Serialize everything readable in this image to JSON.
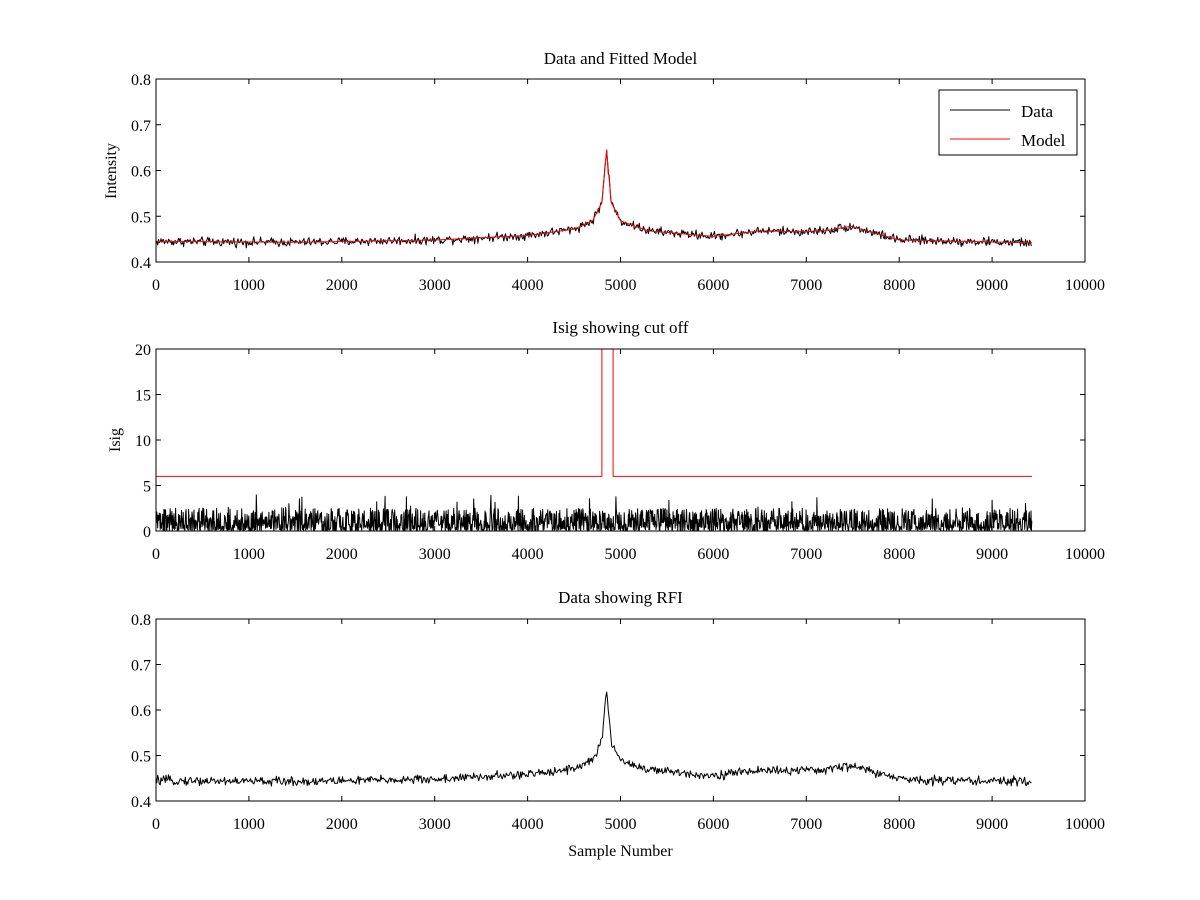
{
  "chart_data": [
    {
      "type": "line",
      "title": "Data and Fitted Model",
      "xlabel": "",
      "ylabel": "Intensity",
      "xlim": [
        0,
        10000
      ],
      "ylim": [
        0.4,
        0.8
      ],
      "xticks": [
        "0",
        "1000",
        "2000",
        "3000",
        "4000",
        "5000",
        "6000",
        "7000",
        "8000",
        "9000",
        "10000"
      ],
      "yticks": [
        "0.4",
        "0.5",
        "0.6",
        "0.7",
        "0.8"
      ],
      "legend": {
        "position": "top-right",
        "entries": [
          "Data",
          "Model"
        ]
      },
      "series": [
        {
          "name": "Data",
          "color": "#000000",
          "kind": "noisy-spectrum",
          "noise": 0.006,
          "points": [
            [
              0,
              0.445
            ],
            [
              1500,
              0.443
            ],
            [
              3000,
              0.448
            ],
            [
              4000,
              0.458
            ],
            [
              4500,
              0.472
            ],
            [
              4700,
              0.49
            ],
            [
              4800,
              0.53
            ],
            [
              4850,
              0.645
            ],
            [
              4900,
              0.53
            ],
            [
              5000,
              0.49
            ],
            [
              5300,
              0.468
            ],
            [
              6000,
              0.456
            ],
            [
              6500,
              0.468
            ],
            [
              7000,
              0.466
            ],
            [
              7250,
              0.47
            ],
            [
              7480,
              0.478
            ],
            [
              8000,
              0.448
            ],
            [
              9430,
              0.442
            ]
          ]
        },
        {
          "name": "Model",
          "color": "#ff0000",
          "kind": "smooth",
          "points": [
            [
              0,
              0.445
            ],
            [
              1500,
              0.443
            ],
            [
              3000,
              0.448
            ],
            [
              4000,
              0.458
            ],
            [
              4500,
              0.472
            ],
            [
              4700,
              0.49
            ],
            [
              4800,
              0.53
            ],
            [
              4850,
              0.645
            ],
            [
              4900,
              0.53
            ],
            [
              5000,
              0.49
            ],
            [
              5300,
              0.468
            ],
            [
              6000,
              0.456
            ],
            [
              6500,
              0.468
            ],
            [
              7000,
              0.466
            ],
            [
              7250,
              0.47
            ],
            [
              7480,
              0.478
            ],
            [
              8000,
              0.448
            ],
            [
              9430,
              0.442
            ]
          ]
        }
      ]
    },
    {
      "type": "line",
      "title": "Isig showing cut off",
      "xlabel": "",
      "ylabel": "Isig",
      "xlim": [
        0,
        10000
      ],
      "ylim": [
        0,
        20
      ],
      "xticks": [
        "0",
        "1000",
        "2000",
        "3000",
        "4000",
        "5000",
        "6000",
        "7000",
        "8000",
        "9000",
        "10000"
      ],
      "yticks": [
        "0",
        "5",
        "10",
        "15",
        "20"
      ],
      "series": [
        {
          "name": "Isig",
          "color": "#000000",
          "kind": "noise-band",
          "x_range": [
            0,
            9430
          ],
          "typical_max": 2.5,
          "peak_max": 4.0
        },
        {
          "name": "Cut off",
          "color": "#ff0000",
          "kind": "step",
          "points": [
            [
              0,
              6
            ],
            [
              4800,
              6
            ],
            [
              4800,
              20
            ],
            [
              4920,
              20
            ],
            [
              4920,
              6
            ],
            [
              9430,
              6
            ]
          ]
        }
      ]
    },
    {
      "type": "line",
      "title": "Data showing RFI",
      "xlabel": "Sample Number",
      "ylabel": "",
      "xlim": [
        0,
        10000
      ],
      "ylim": [
        0.4,
        0.8
      ],
      "xticks": [
        "0",
        "1000",
        "2000",
        "3000",
        "4000",
        "5000",
        "6000",
        "7000",
        "8000",
        "9000",
        "10000"
      ],
      "yticks": [
        "0.4",
        "0.5",
        "0.6",
        "0.7",
        "0.8"
      ],
      "series": [
        {
          "name": "Data",
          "color": "#000000",
          "kind": "noisy-spectrum",
          "noise": 0.006,
          "points": [
            [
              0,
              0.445
            ],
            [
              1500,
              0.443
            ],
            [
              3000,
              0.448
            ],
            [
              4000,
              0.458
            ],
            [
              4500,
              0.472
            ],
            [
              4700,
              0.49
            ],
            [
              4800,
              0.53
            ],
            [
              4850,
              0.645
            ],
            [
              4900,
              0.53
            ],
            [
              5000,
              0.49
            ],
            [
              5300,
              0.468
            ],
            [
              6000,
              0.456
            ],
            [
              6500,
              0.468
            ],
            [
              7000,
              0.466
            ],
            [
              7250,
              0.47
            ],
            [
              7480,
              0.478
            ],
            [
              8000,
              0.448
            ],
            [
              9430,
              0.442
            ]
          ]
        }
      ]
    }
  ]
}
